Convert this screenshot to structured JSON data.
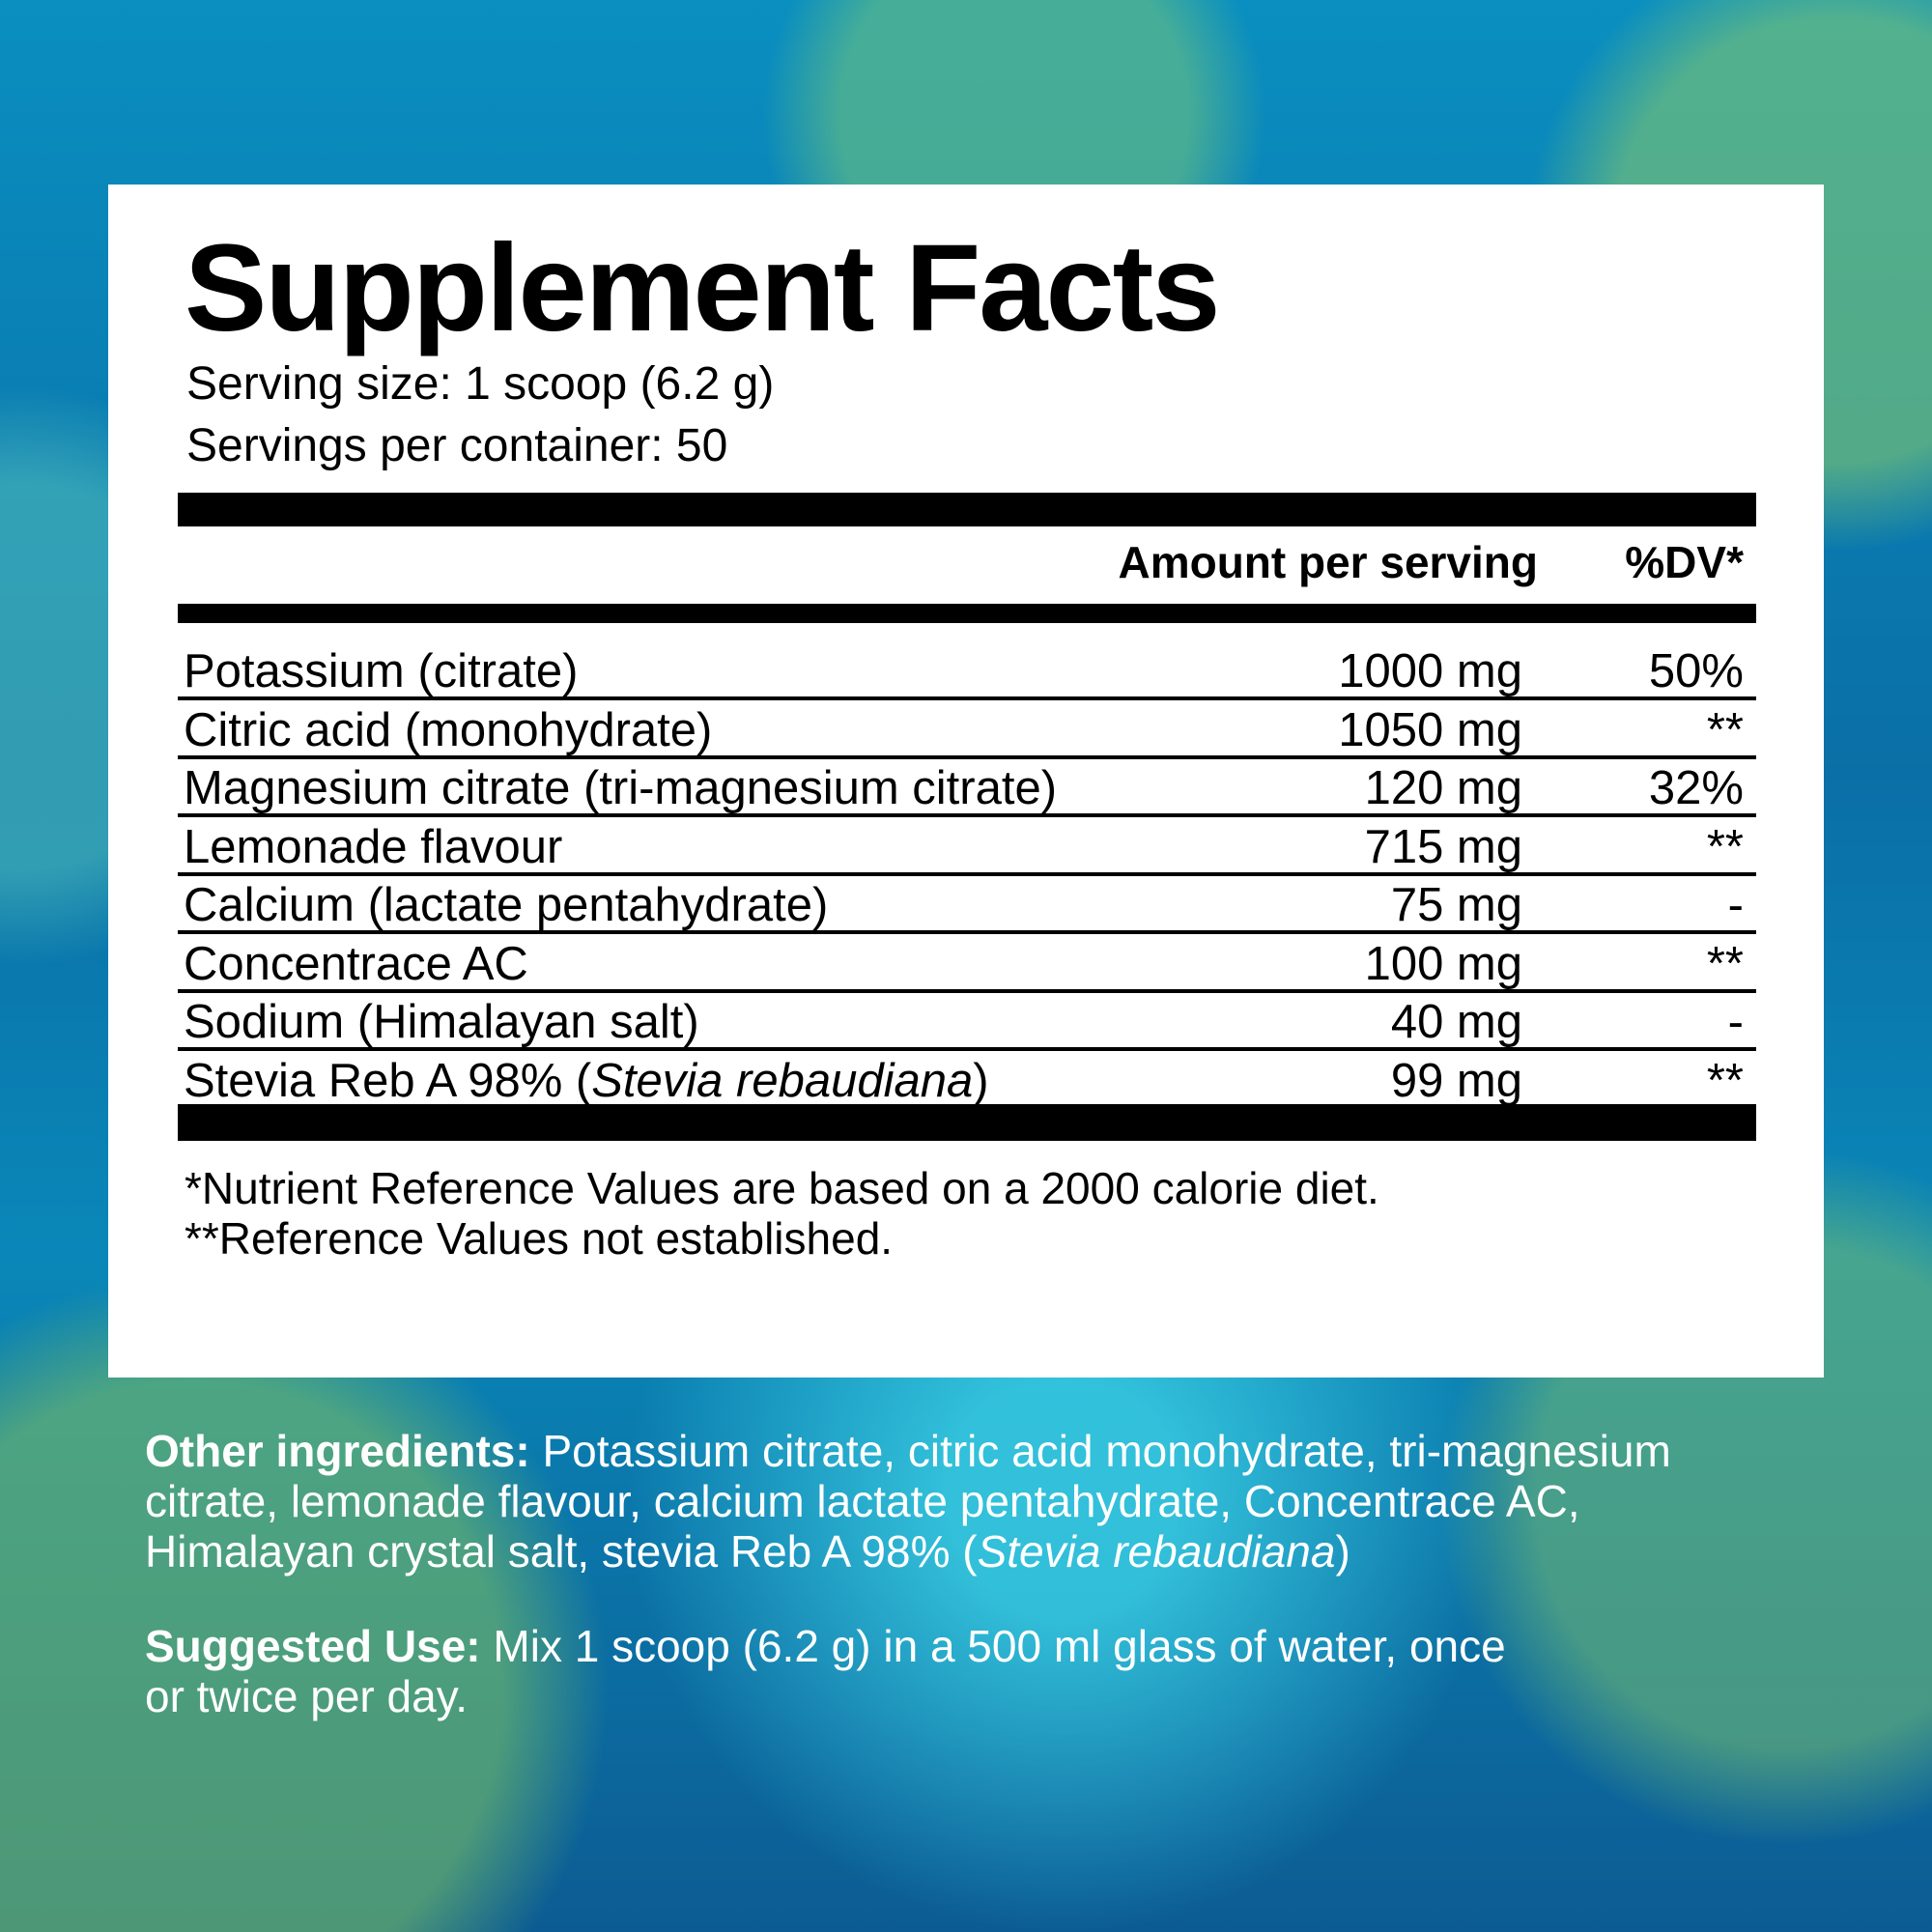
{
  "title": "Supplement Facts",
  "serving_size": "Serving size: 1 scoop (6.2 g)",
  "servings_per_container": "Servings per container: 50",
  "header": {
    "amount": "Amount per serving",
    "dv": "%DV*"
  },
  "rows": [
    {
      "name": "Potassium (citrate)",
      "amount": "1000 mg",
      "dv": "50%"
    },
    {
      "name": "Citric acid (monohydrate)",
      "amount": "1050 mg",
      "dv": "**"
    },
    {
      "name": "Magnesium citrate (tri-magnesium citrate)",
      "amount": "120 mg",
      "dv": "32%"
    },
    {
      "name": "Lemonade flavour",
      "amount": "715 mg",
      "dv": "**"
    },
    {
      "name": "Calcium (lactate pentahydrate)",
      "amount": "75 mg",
      "dv": "-"
    },
    {
      "name": "Concentrace AC",
      "amount": "100 mg",
      "dv": "**"
    },
    {
      "name": "Sodium (Himalayan salt)",
      "amount": "40 mg",
      "dv": "-"
    },
    {
      "name": "Stevia Reb A 98% (",
      "name_italic": "Stevia rebaudiana",
      "name_end": ")",
      "amount": "99 mg",
      "dv": "**"
    }
  ],
  "footnotes": [
    "*Nutrient Reference Values are based on a 2000 calorie diet.",
    "**Reference Values not established."
  ],
  "other_ingredients": {
    "label": "Other ingredients:",
    "text": " Potassium citrate, citric acid monohydrate, tri-magnesium citrate, lemonade flavour, calcium lactate pentahydrate, Concentrace AC, Himalayan crystal salt, stevia Reb A 98% (",
    "italic": "Stevia rebaudiana",
    "end": ")"
  },
  "suggested_use": {
    "label": "Suggested Use:",
    "text": " Mix 1 scoop (6.2 g) in a 500 ml glass of water, once or twice per day."
  }
}
